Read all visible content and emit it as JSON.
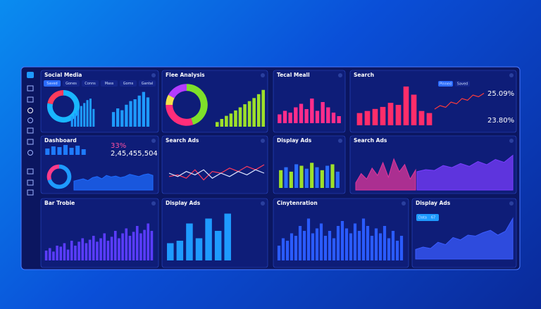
{
  "chart_data": [
    {
      "type": "donut",
      "title": "Social Media",
      "tabs": [
        "Saved",
        "Gones",
        "Conns",
        "Mass",
        "Goms",
        "Gantal"
      ],
      "values": [
        78,
        22
      ],
      "colors": [
        "#19b6ff",
        "#ff3b5c"
      ]
    },
    {
      "type": "bar",
      "values": [
        35,
        45,
        55,
        70,
        80,
        90,
        95,
        60
      ],
      "color": "#1e9bff",
      "ylim": [
        0,
        100
      ]
    },
    {
      "type": "bar",
      "values": [
        40,
        50,
        45,
        60,
        70,
        75,
        85,
        95,
        80
      ],
      "color": "#1e9bff",
      "ylim": [
        0,
        100
      ]
    },
    {
      "type": "donut",
      "title": "Flee Analysis",
      "values": [
        45,
        30,
        8,
        17
      ],
      "colors": [
        "#7ee02a",
        "#ff2d7a",
        "#f2e24a",
        "#b53cff"
      ]
    },
    {
      "type": "bar",
      "values": [
        12,
        20,
        28,
        34,
        42,
        50,
        58,
        66,
        74,
        84,
        95
      ],
      "color": "#9ee02a",
      "ylim": [
        0,
        100
      ]
    },
    {
      "type": "bar",
      "title": "Tecal Meall",
      "values": [
        25,
        35,
        30,
        45,
        55,
        40,
        70,
        35,
        60,
        45,
        30,
        20
      ],
      "color": "#ff2d8a",
      "ylim": [
        0,
        100
      ]
    },
    {
      "type": "bar",
      "title": "Search",
      "tabs": [
        "Pinned",
        "Saved"
      ],
      "values": [
        30,
        35,
        40,
        45,
        55,
        50,
        95,
        75,
        35,
        30
      ],
      "color": "#ff2d6a",
      "ylim": [
        0,
        100
      ]
    },
    {
      "type": "line",
      "stats": [
        "25.09%",
        "23.80%"
      ],
      "values": [
        30,
        40,
        35,
        50,
        45,
        60,
        55,
        70,
        65,
        75
      ],
      "color": "#ff3b3b",
      "ylim": [
        0,
        100
      ]
    },
    {
      "type": "bar",
      "title": "Dashboard",
      "stats": [
        "33%",
        "2,45,455,504"
      ],
      "values": [
        45,
        60,
        55,
        70,
        50,
        65,
        40
      ],
      "color": "#1e7bff",
      "ylim": [
        0,
        100
      ]
    },
    {
      "type": "donut",
      "values": [
        70,
        30
      ],
      "colors": [
        "#1e9bff",
        "#ff3b8a"
      ]
    },
    {
      "type": "area",
      "values": [
        40,
        45,
        50,
        42,
        55,
        60,
        50,
        65,
        58,
        62,
        55,
        60,
        70,
        65,
        60,
        68,
        72,
        65
      ],
      "color": "#1e6bff",
      "ylim": [
        0,
        100
      ]
    },
    {
      "type": "line",
      "title": "Search Ads",
      "series": [
        {
          "color": "#ff3b5c",
          "values": [
            40,
            45,
            35,
            60,
            30,
            55,
            50,
            65,
            55,
            70,
            60,
            75
          ]
        },
        {
          "color": "#dfe6ff",
          "values": [
            50,
            40,
            55,
            45,
            60,
            35,
            50,
            40,
            55,
            45,
            60,
            50
          ]
        }
      ],
      "ylim": [
        0,
        100
      ]
    },
    {
      "type": "bar",
      "title": "Display Ads",
      "values": [
        60,
        70,
        55,
        80,
        75,
        65,
        85,
        70,
        60,
        75,
        80,
        55
      ],
      "colors": [
        "#9ee02a",
        "#2a6bff",
        "#9ee02a",
        "#2a6bff",
        "#9ee02a",
        "#2a6bff",
        "#9ee02a",
        "#2a6bff",
        "#9ee02a",
        "#2a6bff",
        "#9ee02a",
        "#2a6bff"
      ],
      "ylim": [
        0,
        100
      ]
    },
    {
      "type": "area",
      "title": "Search Ads",
      "values": [
        20,
        45,
        30,
        60,
        40,
        75,
        35,
        85,
        50,
        70,
        30,
        55
      ],
      "color": "#e0359a",
      "ylim": [
        0,
        100
      ]
    },
    {
      "type": "area",
      "values": [
        45,
        50,
        48,
        60,
        55,
        65,
        58,
        70,
        62,
        75,
        68,
        85
      ],
      "color": "#7a3cff",
      "ylim": [
        0,
        100
      ]
    },
    {
      "type": "bar",
      "title": "Bar Trobie",
      "values": [
        20,
        25,
        18,
        30,
        28,
        35,
        22,
        40,
        30,
        38,
        45,
        35,
        42,
        50,
        38,
        45,
        55,
        40,
        48,
        60,
        45,
        55,
        65,
        50,
        58,
        70,
        55,
        62,
        75,
        60
      ],
      "color": "#5a3cff",
      "ylim": [
        0,
        100
      ]
    },
    {
      "type": "bar",
      "title": "Display Ads",
      "values": [
        35,
        40,
        75,
        45,
        85,
        60,
        95
      ],
      "color": "#1e9bff",
      "ylim": [
        0,
        100
      ]
    },
    {
      "type": "bar",
      "title": "Cinytenration",
      "values": [
        30,
        45,
        40,
        55,
        50,
        70,
        60,
        85,
        55,
        65,
        75,
        50,
        60,
        45,
        70,
        80,
        65,
        55,
        75,
        60,
        85,
        70,
        50,
        65,
        55,
        70,
        45,
        60,
        40,
        50
      ],
      "color": "#2a5bff",
      "ylim": [
        0,
        100
      ]
    },
    {
      "type": "area",
      "title": "Display Ads",
      "badge": [
        "Data",
        "67"
      ],
      "values": [
        20,
        25,
        22,
        35,
        30,
        45,
        40,
        50,
        48,
        55,
        60,
        50,
        58,
        85
      ],
      "color": "#3a5bff",
      "ylim": [
        0,
        100
      ]
    }
  ]
}
